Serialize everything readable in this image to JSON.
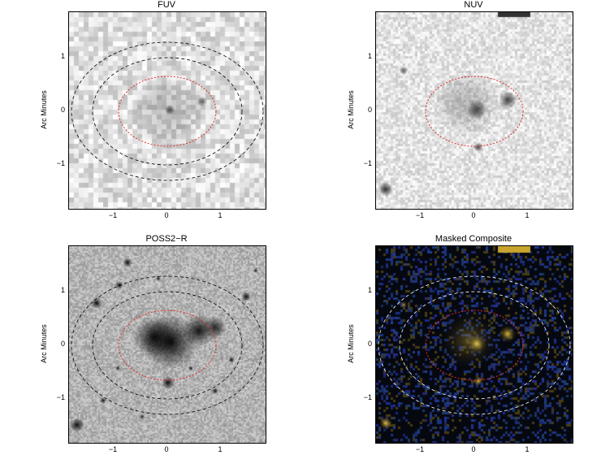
{
  "panels": [
    {
      "title": "FUV",
      "ylabel": "Arc Minutes",
      "style": "gray-noise"
    },
    {
      "title": "NUV",
      "ylabel": "Arc Minutes",
      "style": "gray-fine"
    },
    {
      "title": "POSS2−R",
      "ylabel": "Arc Minutes",
      "style": "optical"
    },
    {
      "title": "Masked Composite",
      "ylabel": "Arc Minutes",
      "style": "color"
    }
  ],
  "axis": {
    "xticks": [
      "−1",
      "0",
      "1"
    ],
    "yticks": [
      "1",
      "0",
      "−1"
    ]
  },
  "colors": {
    "ellipse_red": "#e0302a",
    "ellipse_black": "#000000",
    "ellipse_white": "#ffffff",
    "composite_yellow": "#e6c43a",
    "composite_blue": "#1c2f6b"
  }
}
